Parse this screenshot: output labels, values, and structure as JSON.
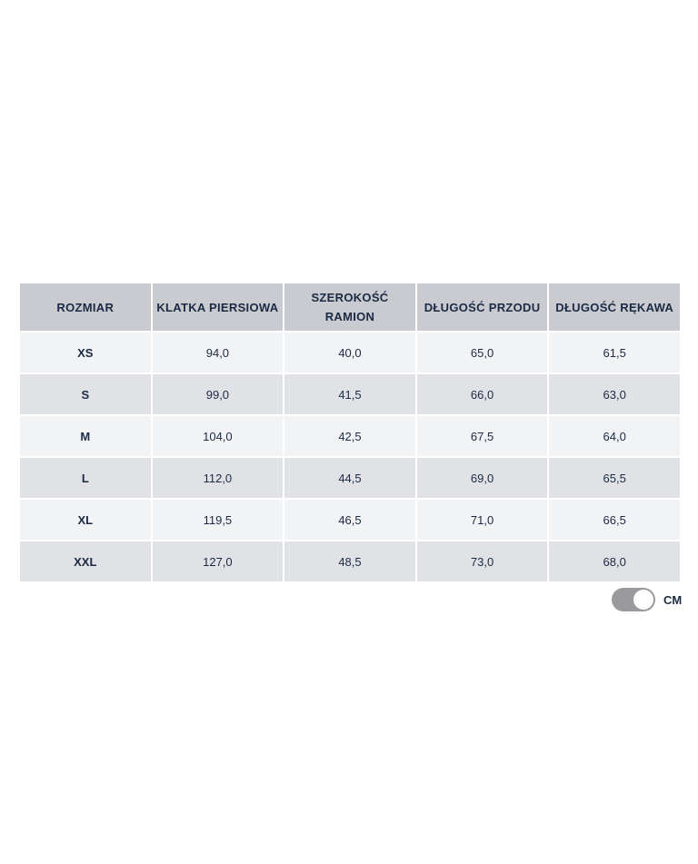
{
  "table": {
    "headers": [
      "ROZMIAR",
      "KLATKA PIERSIOWA",
      "SZEROKOŚĆ RAMION",
      "DŁUGOŚĆ PRZODU",
      "DŁUGOŚĆ RĘKAWA"
    ],
    "rows": [
      [
        "XS",
        "94,0",
        "40,0",
        "65,0",
        "61,5"
      ],
      [
        "S",
        "99,0",
        "41,5",
        "66,0",
        "63,0"
      ],
      [
        "M",
        "104,0",
        "42,5",
        "67,5",
        "64,0"
      ],
      [
        "L",
        "112,0",
        "44,5",
        "69,0",
        "65,5"
      ],
      [
        "XL",
        "119,5",
        "46,5",
        "71,0",
        "66,5"
      ],
      [
        "XXL",
        "127,0",
        "48,5",
        "73,0",
        "68,0"
      ]
    ]
  },
  "unit_toggle": {
    "label": "CM",
    "on": true,
    "color": "#9a9a9c"
  },
  "colors": {
    "header_bg": "#c9cbd0",
    "row_light": "#f2f3f5",
    "row_dark": "#e1e2e6",
    "text": "#1b2a44"
  }
}
